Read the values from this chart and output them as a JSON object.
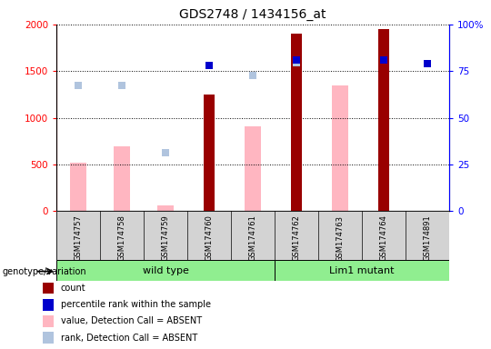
{
  "title": "GDS2748 / 1434156_at",
  "samples": [
    "GSM174757",
    "GSM174758",
    "GSM174759",
    "GSM174760",
    "GSM174761",
    "GSM174762",
    "GSM174763",
    "GSM174764",
    "GSM174891"
  ],
  "count_values": [
    null,
    null,
    null,
    1250,
    null,
    1900,
    null,
    1950,
    null
  ],
  "percentile_rank": [
    null,
    null,
    null,
    78,
    null,
    81,
    null,
    81,
    79
  ],
  "value_absent": [
    520,
    690,
    60,
    null,
    910,
    null,
    1350,
    null,
    null
  ],
  "rank_absent": [
    1350,
    1350,
    630,
    null,
    1450,
    1590,
    null,
    null,
    null
  ],
  "ylim_left": [
    0,
    2000
  ],
  "ylim_right": [
    0,
    100
  ],
  "yticks_left": [
    0,
    500,
    1000,
    1500,
    2000
  ],
  "yticks_right": [
    0,
    25,
    50,
    75,
    100
  ],
  "count_color": "#990000",
  "rank_color": "#0000CC",
  "absent_value_color": "#FFB6C1",
  "absent_rank_color": "#B0C4DE",
  "genotype_label": "genotype/variation",
  "wild_type_label": "wild type",
  "mutant_label": "Lim1 mutant",
  "group_color": "#90EE90",
  "legend_items": [
    {
      "label": "count",
      "color": "#990000"
    },
    {
      "label": "percentile rank within the sample",
      "color": "#0000CC"
    },
    {
      "label": "value, Detection Call = ABSENT",
      "color": "#FFB6C1"
    },
    {
      "label": "rank, Detection Call = ABSENT",
      "color": "#B0C4DE"
    }
  ],
  "bg_gray": "#D3D3D3",
  "wild_type_indices": [
    0,
    1,
    2,
    3,
    4
  ],
  "mutant_indices": [
    5,
    6,
    7,
    8
  ]
}
